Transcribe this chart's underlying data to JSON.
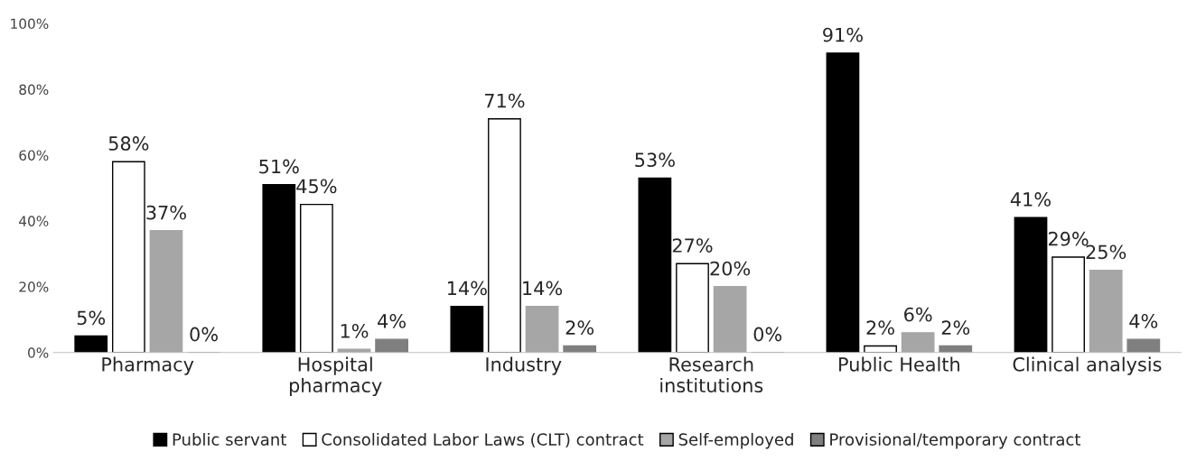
{
  "chart_data": {
    "type": "bar",
    "categories": [
      "Pharmacy",
      "Hospital\npharmacy",
      "Industry",
      "Research\ninstitutions",
      "Public Health",
      "Clinical analysis"
    ],
    "series": [
      {
        "name": "Public servant",
        "color": "#000000",
        "values": [
          5,
          51,
          14,
          53,
          91,
          41
        ],
        "value_labels": [
          "5%",
          "51%",
          "14%",
          "53%",
          "91%",
          "41%"
        ]
      },
      {
        "name": "Consolidated Labor Laws (CLT) contract",
        "color": "#ffffff",
        "values": [
          58,
          45,
          71,
          27,
          2,
          29
        ],
        "value_labels": [
          "58%",
          "45%",
          "71%",
          "27%",
          "2%",
          "29%"
        ]
      },
      {
        "name": "Self-employed",
        "color": "#a6a6a6",
        "values": [
          37,
          1,
          14,
          20,
          6,
          25
        ],
        "value_labels": [
          "37%",
          "1%",
          "14%",
          "20%",
          "6%",
          "25%"
        ]
      },
      {
        "name": "Provisional/temporary contract",
        "color": "#7f7f7f",
        "values": [
          0,
          4,
          2,
          0,
          2,
          4
        ],
        "value_labels": [
          "0%",
          "4%",
          "2%",
          "0%",
          "2%",
          "4%"
        ]
      }
    ],
    "ylim": [
      0,
      100
    ],
    "yticks": [
      {
        "value": 0,
        "label": "0%"
      },
      {
        "value": 20,
        "label": "20%"
      },
      {
        "value": 40,
        "label": "40%"
      },
      {
        "value": 60,
        "label": "60%"
      },
      {
        "value": 80,
        "label": "80%"
      },
      {
        "value": 100,
        "label": "100%"
      }
    ],
    "grid": false,
    "legend": "bottom"
  }
}
